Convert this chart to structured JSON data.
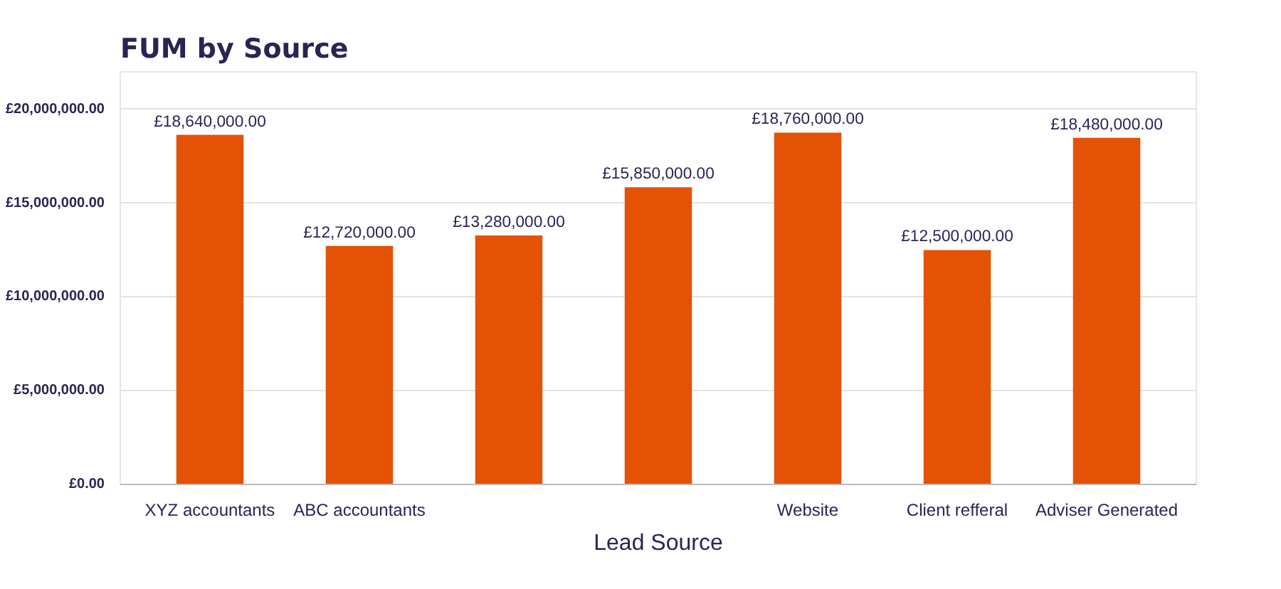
{
  "chart_data": {
    "type": "bar",
    "title": "FUM by Source",
    "xlabel": "Lead Source",
    "categories": [
      "XYZ accountants",
      "ABC accountants",
      null,
      null,
      "Website",
      "Client refferal",
      "Adviser Generated"
    ],
    "values": [
      18640000,
      12720000,
      13280000,
      15850000,
      18760000,
      12500000,
      18480000
    ],
    "value_labels": [
      "£18,640,000.00",
      "£12,720,000.00",
      "£13,280,000.00",
      "£15,850,000.00",
      "£18,760,000.00",
      "£12,500,000.00",
      "£18,480,000.00"
    ],
    "color": "#e35205",
    "ylim": [
      0,
      22000000
    ],
    "yticks": [
      {
        "value": 0,
        "label": "£0.00"
      },
      {
        "value": 5000000,
        "label": "£5,000,000.00"
      },
      {
        "value": 10000000,
        "label": "£10,000,000.00"
      },
      {
        "value": 15000000,
        "label": "£15,000,000.00"
      },
      {
        "value": 20000000,
        "label": "£20,000,000.00"
      }
    ],
    "grid": "y"
  }
}
